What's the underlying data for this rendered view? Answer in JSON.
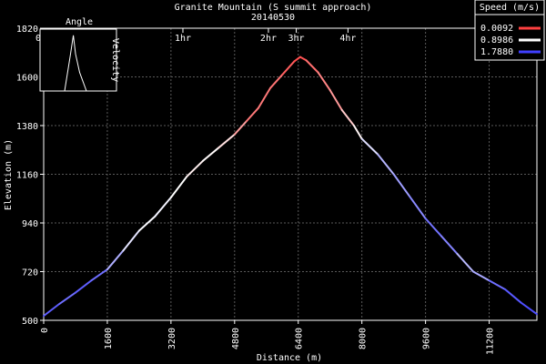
{
  "chart_data": {
    "type": "line",
    "title": "Granite Mountain (S summit approach)",
    "subtitle": "20140530",
    "xlabel": "Distance (m)",
    "ylabel": "Elevation (m)",
    "xlim": [
      0,
      12400
    ],
    "ylim": [
      500,
      1820
    ],
    "x_ticks": [
      "0",
      "1600",
      "3200",
      "4800",
      "6400",
      "8000",
      "9600",
      "11200"
    ],
    "x_tick_values": [
      0,
      1600,
      3200,
      4800,
      6400,
      8000,
      9600,
      11200
    ],
    "y_ticks": [
      "500",
      "720",
      "940",
      "1160",
      "1380",
      "1600",
      "1820"
    ],
    "y_tick_values": [
      500,
      720,
      940,
      1160,
      1380,
      1600,
      1820
    ],
    "time_ticks": [
      {
        "label": "0hr",
        "x": 0
      },
      {
        "label": "1hr",
        "x": 3500
      },
      {
        "label": "2hr",
        "x": 5650
      },
      {
        "label": "3hr",
        "x": 6350
      },
      {
        "label": "4hr",
        "x": 7650
      }
    ],
    "grid": true,
    "legend": {
      "title": "Speed (m/s)",
      "position": "top-right",
      "entries": [
        {
          "label": "0.0092",
          "color": "#ff4040"
        },
        {
          "label": "0.8986",
          "color": "#ffffff"
        },
        {
          "label": "1.7880",
          "color": "#4040ff"
        }
      ]
    },
    "speed_range": [
      0.0092,
      1.788
    ],
    "series": [
      {
        "x": [
          0,
          400,
          800,
          1200,
          1600,
          2000,
          2400,
          2800,
          3200,
          3600,
          4000,
          4400,
          4800,
          5100,
          5400,
          5700,
          6000,
          6300,
          6450,
          6600,
          6900,
          7200,
          7500,
          7800,
          8000,
          8400,
          8800,
          9200,
          9600,
          10000,
          10400,
          10800,
          11200,
          11600,
          12000,
          12400
        ],
        "y": [
          520,
          575,
          625,
          680,
          730,
          815,
          905,
          970,
          1055,
          1150,
          1220,
          1280,
          1340,
          1400,
          1460,
          1550,
          1610,
          1670,
          1690,
          1675,
          1620,
          1540,
          1450,
          1380,
          1320,
          1250,
          1160,
          1060,
          960,
          880,
          800,
          720,
          680,
          640,
          580,
          528
        ],
        "speed": [
          1.75,
          1.55,
          1.6,
          1.7,
          1.45,
          1.1,
          0.95,
          0.9,
          1.0,
          0.8,
          0.85,
          0.9,
          0.6,
          0.3,
          0.25,
          0.3,
          0.2,
          0.1,
          0.05,
          0.15,
          0.3,
          0.35,
          0.5,
          0.8,
          0.9,
          1.2,
          1.3,
          1.4,
          1.5,
          1.6,
          1.35,
          1.1,
          1.5,
          1.65,
          1.7,
          1.75
        ]
      }
    ],
    "inset": {
      "title": "Angle",
      "ylabel": "Velocity",
      "points": [
        [
          0.1,
          1.0
        ],
        [
          0.3,
          0.45
        ],
        [
          0.42,
          0.1
        ],
        [
          0.5,
          0.4
        ],
        [
          0.65,
          0.7
        ],
        [
          0.9,
          1.0
        ]
      ]
    }
  }
}
